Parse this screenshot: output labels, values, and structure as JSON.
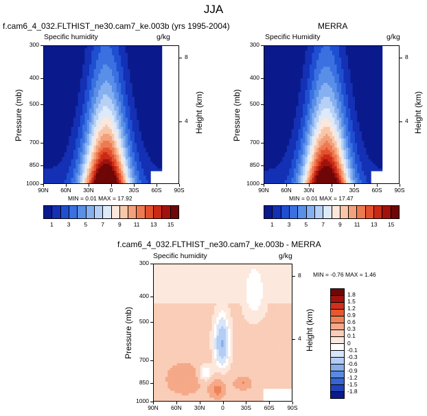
{
  "figure": {
    "title": "JJA"
  },
  "panels": [
    {
      "header": "f.cam6_4_032.FLTHIST_ne30.cam7_ke.003b (yrs 1995-2004)",
      "left_label": "Specific humidity",
      "right_label": "g/kg",
      "ylabel": "Pressure (mb)",
      "y2label": "Height (km)",
      "stats": "MIN =  0.01  MAX =  17.92"
    },
    {
      "header": "MERRA",
      "left_label": "Specific Humidity",
      "right_label": "g/kg",
      "ylabel": "Pressure (mb)",
      "y2label": "Height (km)",
      "stats": "MIN =  0.01  MAX =  17.47"
    },
    {
      "header": "f.cam6_4_032.FLTHIST_ne30.cam7_ke.003b - MERRA",
      "left_label": "Specific humidity",
      "right_label": "g/kg",
      "ylabel": "Pressure (mb)",
      "y2label": "Height (km)",
      "stats": "MIN = -0.76  MAX =  1.46"
    }
  ],
  "chart_data": [
    {
      "type": "heatmap",
      "x_ticks": [
        "90N",
        "60N",
        "30N",
        "0",
        "30S",
        "60S",
        "90S"
      ],
      "y_ticks": [
        "300",
        "400",
        "500",
        "700",
        "850",
        "1000"
      ],
      "y_ticks_values": [
        300,
        400,
        500,
        700,
        850,
        1000
      ],
      "y2_ticks": [
        "8",
        "4"
      ],
      "y2_ticks_values": [
        8,
        4
      ],
      "ylim": [
        1000,
        300
      ],
      "xlim": [
        90,
        -90
      ],
      "min": 0.01,
      "max": 17.92,
      "colorbar_ticks": [
        "1",
        "3",
        "5",
        "7",
        "9",
        "11",
        "13",
        "15"
      ]
    },
    {
      "type": "heatmap",
      "x_ticks": [
        "90N",
        "60N",
        "30N",
        "0",
        "30S",
        "60S",
        "90S"
      ],
      "y_ticks": [
        "300",
        "400",
        "500",
        "700",
        "850",
        "1000"
      ],
      "y_ticks_values": [
        300,
        400,
        500,
        700,
        850,
        1000
      ],
      "y2_ticks": [
        "8",
        "4"
      ],
      "y2_ticks_values": [
        8,
        4
      ],
      "ylim": [
        1000,
        300
      ],
      "xlim": [
        90,
        -90
      ],
      "min": 0.01,
      "max": 17.47,
      "colorbar_ticks": [
        "1",
        "3",
        "5",
        "7",
        "9",
        "11",
        "13",
        "15"
      ]
    },
    {
      "type": "heatmap",
      "x_ticks": [
        "90N",
        "60N",
        "30N",
        "0",
        "30S",
        "60S",
        "90S"
      ],
      "y_ticks": [
        "300",
        "400",
        "500",
        "700",
        "850",
        "1000"
      ],
      "y_ticks_values": [
        300,
        400,
        500,
        700,
        850,
        1000
      ],
      "y2_ticks": [
        "8",
        "4"
      ],
      "y2_ticks_values": [
        8,
        4
      ],
      "ylim": [
        1000,
        300
      ],
      "xlim": [
        90,
        -90
      ],
      "min": -0.76,
      "max": 1.46,
      "colorbar_ticks": [
        "1.8",
        "1.5",
        "1.2",
        "0.9",
        "0.6",
        "0.3",
        "0.1",
        "0",
        "-0.1",
        "-0.3",
        "-0.6",
        "-0.9",
        "-1.2",
        "-1.5",
        "-1.8"
      ]
    }
  ],
  "colors": {
    "abs_levels": [
      "#0a1a8c",
      "#1430b4",
      "#1f4fd1",
      "#3a70e0",
      "#5a8fe8",
      "#86b0ef",
      "#b7d0f5",
      "#ddeaf9",
      "#fbe7dc",
      "#f8c7aa",
      "#f4a07a",
      "#ee7a52",
      "#e2512c",
      "#c92a16",
      "#a2120c",
      "#6e0707"
    ],
    "diff_levels": [
      "#6e0707",
      "#a2120c",
      "#d0301b",
      "#e8582f",
      "#f08258",
      "#f5a988",
      "#f9cdb7",
      "#fde8dd",
      "#ffffff",
      "#d7e6fa",
      "#b3cdf4",
      "#86adec",
      "#5a89e1",
      "#3764d0",
      "#1f43b8",
      "#0a1a8c"
    ]
  }
}
